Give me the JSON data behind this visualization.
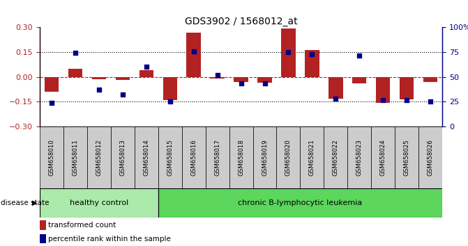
{
  "title": "GDS3902 / 1568012_at",
  "samples": [
    "GSM658010",
    "GSM658011",
    "GSM658012",
    "GSM658013",
    "GSM658014",
    "GSM658015",
    "GSM658016",
    "GSM658017",
    "GSM658018",
    "GSM658019",
    "GSM658020",
    "GSM658021",
    "GSM658022",
    "GSM658023",
    "GSM658024",
    "GSM658025",
    "GSM658026"
  ],
  "red_bars": [
    -0.09,
    0.05,
    -0.015,
    -0.02,
    0.04,
    -0.14,
    0.265,
    -0.01,
    -0.03,
    -0.035,
    0.29,
    0.16,
    -0.13,
    -0.04,
    -0.155,
    -0.135,
    -0.03
  ],
  "blue_dots": [
    -0.155,
    0.145,
    -0.075,
    -0.108,
    0.06,
    -0.148,
    0.155,
    0.01,
    -0.04,
    -0.04,
    0.15,
    0.135,
    -0.13,
    0.128,
    -0.14,
    -0.14,
    -0.148
  ],
  "group1_count": 5,
  "group2_count": 12,
  "group1_label": "healthy control",
  "group2_label": "chronic B-lymphocytic leukemia",
  "group1_color": "#abeaab",
  "group2_color": "#5cd65c",
  "disease_label": "disease state",
  "legend_red": "transformed count",
  "legend_blue": "percentile rank within the sample",
  "ylim_left": [
    -0.3,
    0.3
  ],
  "ylim_right": [
    0,
    100
  ],
  "yticks_left": [
    -0.3,
    -0.15,
    0,
    0.15,
    0.3
  ],
  "yticks_right": [
    0,
    25,
    50,
    75,
    100
  ],
  "red_color": "#b22222",
  "blue_color": "#00008b",
  "bg_xaxis": "#cccccc"
}
